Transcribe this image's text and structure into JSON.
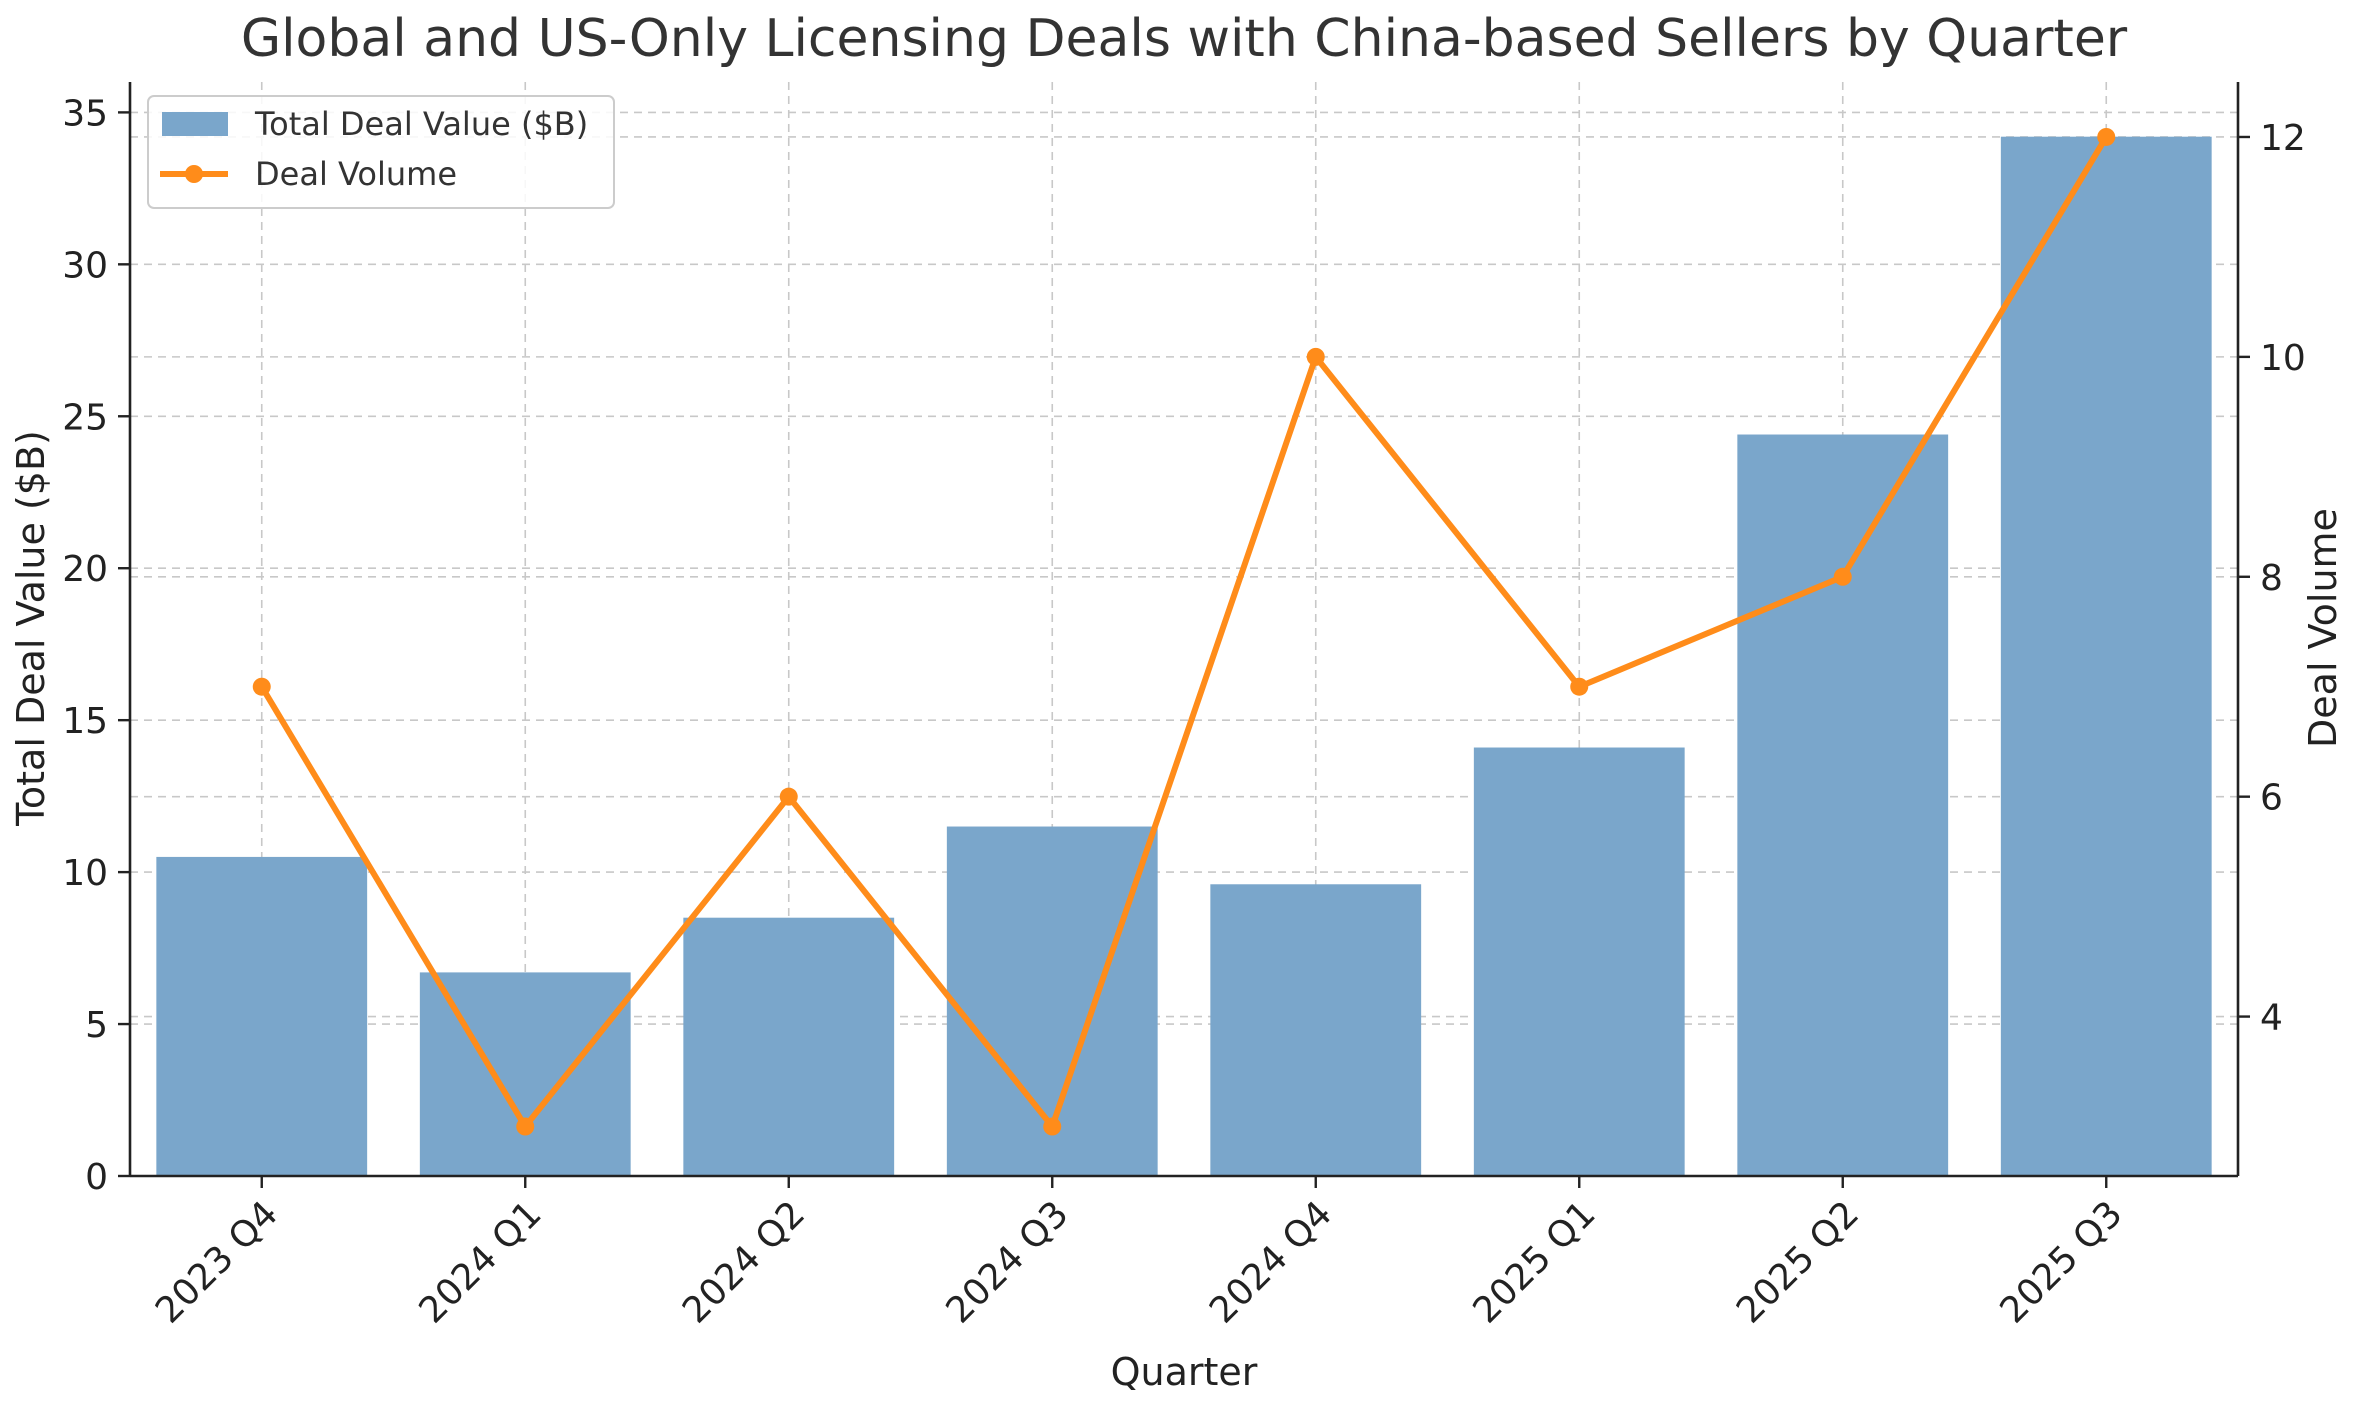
{
  "chart_data": {
    "type": "bar",
    "title": "Global and US-Only Licensing Deals with China-based Sellers by Quarter",
    "xlabel": "Quarter",
    "ylabel": "Total Deal Value ($B)",
    "y2label": "Deal Volume",
    "categories": [
      "2023 Q4",
      "2024 Q1",
      "2024 Q2",
      "2024 Q3",
      "2024 Q4",
      "2025 Q1",
      "2025 Q2",
      "2025 Q3"
    ],
    "series": [
      {
        "name": "Total Deal Value ($B)",
        "type": "bar",
        "axis": "left",
        "color": "#7aa6cb",
        "values": [
          10.5,
          6.7,
          8.5,
          11.5,
          9.6,
          14.1,
          24.4,
          34.2
        ]
      },
      {
        "name": "Deal Volume",
        "type": "line",
        "axis": "right",
        "color": "#ff8c1a",
        "values": [
          7,
          3,
          6,
          3,
          10,
          7,
          8,
          12
        ]
      }
    ],
    "ylim": [
      0,
      36
    ],
    "y2lim": [
      2.55,
      12.5
    ],
    "yticks": [
      0,
      5,
      10,
      15,
      20,
      25,
      30,
      35
    ],
    "y2ticks": [
      4,
      6,
      8,
      10,
      12
    ],
    "grid": true,
    "legend_position": "top-left"
  }
}
